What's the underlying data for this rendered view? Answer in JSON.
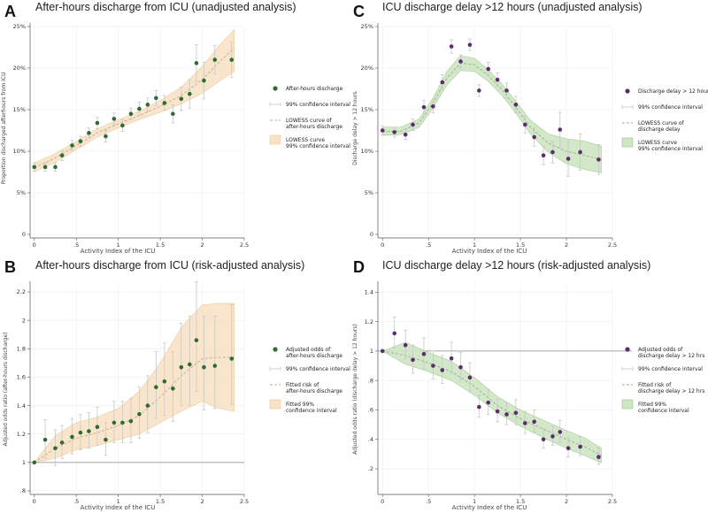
{
  "chart_data": [
    {
      "panel": "A",
      "type": "scatter",
      "title": "After-hours discharge from ICU (unadjusted analysis)",
      "xlabel": "Activity Index of the ICU",
      "ylabel": "Proportion discharged afterhours from ICU",
      "xlim": [
        -0.05,
        2.5
      ],
      "ylim": [
        0,
        25
      ],
      "xticks": [
        0,
        0.5,
        1,
        1.5,
        2,
        2.5
      ],
      "xtick_labels": [
        "0",
        ".5",
        "1",
        "1.5",
        "2",
        "2.5"
      ],
      "yticks": [
        0,
        5,
        10,
        15,
        20,
        25
      ],
      "ytick_labels": [
        "0",
        "5%",
        "10%",
        "15%",
        "20%",
        "25%"
      ],
      "ref_line": null,
      "colors": {
        "point": "#2e6b35",
        "band_fill": "#f9e3c7",
        "band_stroke": "#f0c48f",
        "ci": "#c8c8c8",
        "curve": "#c4a98d"
      },
      "x": [
        0,
        0.13,
        0.25,
        0.33,
        0.45,
        0.55,
        0.65,
        0.75,
        0.85,
        0.95,
        1.05,
        1.15,
        1.25,
        1.35,
        1.45,
        1.55,
        1.65,
        1.75,
        1.85,
        1.93,
        2.02,
        2.15,
        2.35
      ],
      "y": [
        8.1,
        8.1,
        8.1,
        9.5,
        10.7,
        11.2,
        12.2,
        13.4,
        11.8,
        13.9,
        13.1,
        14.5,
        15.1,
        15.6,
        16.4,
        15.8,
        14.5,
        16.3,
        16.9,
        20.6,
        18.5,
        21.0,
        21.0
      ],
      "ci_low": [
        7.6,
        7.6,
        7.6,
        8.9,
        10.1,
        10.6,
        11.6,
        12.7,
        11.1,
        13.2,
        12.4,
        13.8,
        14.3,
        14.8,
        15.5,
        14.9,
        13.4,
        14.9,
        15.2,
        18.4,
        16.3,
        19.3,
        18.9
      ],
      "ci_high": [
        8.6,
        8.6,
        8.6,
        10.1,
        11.3,
        11.8,
        12.8,
        14.1,
        12.5,
        14.6,
        13.8,
        15.2,
        15.9,
        16.4,
        17.3,
        16.7,
        15.6,
        17.7,
        18.6,
        22.8,
        20.7,
        22.7,
        23.1
      ],
      "fit_x": [
        0,
        0.25,
        0.5,
        0.75,
        1.0,
        1.25,
        1.5,
        1.75,
        2.0,
        2.2,
        2.38
      ],
      "fit_y": [
        8.0,
        9.2,
        10.7,
        12.2,
        13.3,
        14.3,
        15.4,
        16.7,
        18.6,
        20.7,
        22.4
      ],
      "band_low": [
        7.5,
        8.7,
        10.2,
        11.7,
        12.8,
        13.8,
        14.7,
        15.7,
        17.0,
        18.4,
        19.6
      ],
      "band_high": [
        8.6,
        9.7,
        11.2,
        12.7,
        13.8,
        14.8,
        16.1,
        17.7,
        20.2,
        22.7,
        24.6
      ],
      "legend": {
        "position": "right",
        "items": [
          {
            "kind": "dot",
            "label": "After-hours discharge"
          },
          {
            "kind": "ci",
            "label": "99% confidence interval"
          },
          {
            "kind": "curve",
            "label": "LOWESS curve of",
            "label2": "after-hours discharge"
          },
          {
            "kind": "band",
            "label": "LOWESS curve",
            "label2": "99% confidence interval"
          }
        ]
      }
    },
    {
      "panel": "B",
      "type": "scatter",
      "title": "After-hours discharge from ICU (risk-adjusted analysis)",
      "xlabel": "Activity Index of the ICU",
      "ylabel": "Adjusted odds ratio (after-hours discharge)",
      "xlim": [
        -0.05,
        2.5
      ],
      "ylim": [
        0.8,
        2.25
      ],
      "xticks": [
        0,
        0.5,
        1,
        1.5,
        2,
        2.5
      ],
      "xtick_labels": [
        "0",
        ".5",
        "1",
        "1.5",
        "2",
        "2.5"
      ],
      "yticks": [
        0.8,
        1,
        1.2,
        1.4,
        1.6,
        1.8,
        2,
        2.2
      ],
      "ytick_labels": [
        ".8",
        "1",
        "1.2",
        "1.4",
        "1.6",
        "1.8",
        "2",
        "2.2"
      ],
      "ref_line": 1,
      "colors": {
        "point": "#2e6b35",
        "band_fill": "#f9e3c7",
        "band_stroke": "#f0c48f",
        "ci": "#c8c8c8",
        "curve": "#c4a98d"
      },
      "x": [
        0,
        0.13,
        0.25,
        0.33,
        0.45,
        0.55,
        0.65,
        0.75,
        0.85,
        0.95,
        1.05,
        1.15,
        1.25,
        1.35,
        1.45,
        1.55,
        1.65,
        1.75,
        1.85,
        1.93,
        2.02,
        2.15,
        2.35
      ],
      "y": [
        1.0,
        1.16,
        1.1,
        1.14,
        1.18,
        1.21,
        1.22,
        1.25,
        1.16,
        1.28,
        1.28,
        1.29,
        1.34,
        1.4,
        1.53,
        1.57,
        1.52,
        1.67,
        1.69,
        1.86,
        1.67,
        1.68,
        1.73
      ],
      "ci_low": [
        1.0,
        1.03,
        0.98,
        1.03,
        1.06,
        1.09,
        1.1,
        1.12,
        1.05,
        1.14,
        1.14,
        1.14,
        1.17,
        1.21,
        1.31,
        1.33,
        1.29,
        1.4,
        1.4,
        1.5,
        1.37,
        1.38,
        1.41
      ],
      "ci_high": [
        1.0,
        1.3,
        1.23,
        1.26,
        1.31,
        1.34,
        1.35,
        1.39,
        1.28,
        1.43,
        1.43,
        1.45,
        1.53,
        1.61,
        1.78,
        1.84,
        1.78,
        1.98,
        2.03,
        2.27,
        2.03,
        2.03,
        2.11
      ],
      "fit_x": [
        0,
        0.25,
        0.5,
        0.75,
        1.0,
        1.25,
        1.5,
        1.75,
        2.0,
        2.2,
        2.38
      ],
      "fit_y": [
        1.0,
        1.1,
        1.17,
        1.21,
        1.26,
        1.33,
        1.46,
        1.61,
        1.73,
        1.74,
        1.74
      ],
      "band_low": [
        1.0,
        1.03,
        1.09,
        1.12,
        1.16,
        1.2,
        1.28,
        1.36,
        1.43,
        1.38,
        1.36
      ],
      "band_high": [
        1.0,
        1.19,
        1.28,
        1.32,
        1.38,
        1.5,
        1.7,
        1.95,
        2.11,
        2.12,
        2.12
      ],
      "legend": {
        "position": "right",
        "items": [
          {
            "kind": "dot",
            "label": "Adjusted odds of",
            "label2": "after-hours discharge"
          },
          {
            "kind": "ci",
            "label": "99% confidence interval"
          },
          {
            "kind": "curve",
            "label": "Fitted risk of",
            "label2": "after-hours discharge"
          },
          {
            "kind": "band",
            "label": "Fitted 99%",
            "label2": "confidence interval"
          }
        ]
      }
    },
    {
      "panel": "C",
      "type": "scatter",
      "title": "ICU discharge delay >12 hours (unadjusted analysis)",
      "xlabel": "Activity Index of the ICU",
      "ylabel": "Discharge delay > 12 hours",
      "xlim": [
        -0.05,
        2.5
      ],
      "ylim": [
        0,
        25
      ],
      "xticks": [
        0,
        0.5,
        1,
        1.5,
        2,
        2.5
      ],
      "xtick_labels": [
        "0",
        ".5",
        "1",
        "1.5",
        "2",
        "2.5"
      ],
      "yticks": [
        0,
        5,
        10,
        15,
        20,
        25
      ],
      "ytick_labels": [
        "0",
        "5%",
        "10%",
        "15%",
        "20%",
        "25%"
      ],
      "ref_line": null,
      "colors": {
        "point": "#5a2d6e",
        "band_fill": "#cfe5c4",
        "band_stroke": "#9cc98a",
        "ci": "#c8c8c8",
        "curve": "#93b389"
      },
      "x": [
        0,
        0.13,
        0.25,
        0.33,
        0.45,
        0.55,
        0.65,
        0.75,
        0.85,
        0.95,
        1.05,
        1.15,
        1.25,
        1.35,
        1.45,
        1.55,
        1.65,
        1.75,
        1.85,
        1.93,
        2.02,
        2.15,
        2.35
      ],
      "y": [
        12.5,
        12.3,
        12.0,
        13.2,
        15.3,
        15.4,
        18.3,
        22.6,
        20.8,
        22.8,
        17.3,
        19.9,
        18.6,
        17.3,
        15.6,
        13.2,
        11.7,
        9.5,
        9.9,
        12.6,
        9.1,
        9.9,
        9.0
      ],
      "ci_low": [
        12.0,
        11.7,
        11.4,
        12.5,
        14.5,
        14.6,
        17.4,
        21.8,
        20.0,
        22.1,
        16.6,
        19.1,
        17.8,
        16.4,
        14.6,
        12.2,
        10.6,
        8.4,
        8.6,
        10.5,
        7.0,
        7.7,
        7.2
      ],
      "ci_high": [
        13.0,
        12.9,
        12.6,
        13.9,
        16.1,
        16.2,
        19.2,
        23.4,
        21.6,
        23.5,
        18.0,
        20.7,
        19.4,
        18.2,
        16.6,
        14.2,
        12.8,
        10.6,
        11.2,
        14.7,
        11.2,
        12.1,
        10.8
      ],
      "fit_x": [
        0,
        0.2,
        0.4,
        0.55,
        0.7,
        0.85,
        1.0,
        1.15,
        1.3,
        1.45,
        1.6,
        1.8,
        2.0,
        2.2,
        2.38
      ],
      "fit_y": [
        12.4,
        12.4,
        13.4,
        15.8,
        18.8,
        20.6,
        20.4,
        19.1,
        17.4,
        15.3,
        13.0,
        11.0,
        10.0,
        9.5,
        9.0
      ],
      "band_low": [
        11.9,
        12.0,
        12.9,
        15.2,
        18.0,
        19.7,
        19.6,
        18.4,
        16.7,
        14.6,
        12.2,
        9.9,
        8.5,
        7.8,
        7.4
      ],
      "band_high": [
        12.9,
        12.9,
        13.9,
        16.4,
        19.6,
        21.5,
        21.2,
        19.8,
        18.1,
        16.0,
        13.8,
        12.1,
        11.5,
        11.2,
        10.6
      ],
      "legend": {
        "position": "right",
        "items": [
          {
            "kind": "dot",
            "label": "Discharge delay > 12 hours"
          },
          {
            "kind": "ci",
            "label": "99% confidence interval"
          },
          {
            "kind": "curve",
            "label": "LOWESS curve of",
            "label2": "discharge delay"
          },
          {
            "kind": "band",
            "label": "LOWESS curve",
            "label2": "99% confidence interval"
          }
        ]
      }
    },
    {
      "panel": "D",
      "type": "scatter",
      "title": "ICU discharge delay >12 hours (risk-adjusted analysis)",
      "xlabel": "Activity Index of the ICU",
      "ylabel": "Adjusted odds ratio (discharge delay > 12 hours)",
      "xlim": [
        -0.05,
        2.5
      ],
      "ylim": [
        0.05,
        1.45
      ],
      "xticks": [
        0,
        0.5,
        1,
        1.5,
        2,
        2.5
      ],
      "xtick_labels": [
        "0",
        ".5",
        "1",
        "1.5",
        "2",
        "2.5"
      ],
      "yticks": [
        0.2,
        0.4,
        0.6,
        0.8,
        1,
        1.2,
        1.4
      ],
      "ytick_labels": [
        ".2",
        ".4",
        ".6",
        ".8",
        "1",
        "1.2",
        "1.4"
      ],
      "ref_line": 1,
      "colors": {
        "point": "#5a2d6e",
        "band_fill": "#cfe5c4",
        "band_stroke": "#9cc98a",
        "ci": "#c8c8c8",
        "curve": "#93b389"
      },
      "x": [
        0,
        0.13,
        0.25,
        0.33,
        0.45,
        0.55,
        0.65,
        0.75,
        0.85,
        0.95,
        1.05,
        1.15,
        1.25,
        1.35,
        1.45,
        1.55,
        1.65,
        1.75,
        1.85,
        1.93,
        2.02,
        2.15,
        2.35
      ],
      "y": [
        1.0,
        1.12,
        1.04,
        0.94,
        0.98,
        0.9,
        0.87,
        0.95,
        0.89,
        0.82,
        0.62,
        0.65,
        0.59,
        0.57,
        0.58,
        0.51,
        0.52,
        0.4,
        0.42,
        0.45,
        0.34,
        0.35,
        0.28
      ],
      "ci_low": [
        1.0,
        1.02,
        0.95,
        0.85,
        0.88,
        0.81,
        0.78,
        0.85,
        0.8,
        0.73,
        0.55,
        0.57,
        0.52,
        0.5,
        0.5,
        0.44,
        0.45,
        0.34,
        0.36,
        0.38,
        0.28,
        0.29,
        0.23
      ],
      "ci_high": [
        1.0,
        1.23,
        1.14,
        1.04,
        1.09,
        1.0,
        0.97,
        1.06,
        0.99,
        0.92,
        0.7,
        0.74,
        0.67,
        0.65,
        0.67,
        0.59,
        0.6,
        0.47,
        0.49,
        0.53,
        0.41,
        0.42,
        0.34
      ],
      "fit_x": [
        0,
        0.25,
        0.5,
        0.75,
        1.0,
        1.25,
        1.5,
        1.75,
        2.0,
        2.2,
        2.38
      ],
      "fit_y": [
        1.0,
        0.97,
        0.92,
        0.86,
        0.76,
        0.63,
        0.54,
        0.47,
        0.4,
        0.35,
        0.29
      ],
      "band_low": [
        1.0,
        0.91,
        0.86,
        0.8,
        0.7,
        0.58,
        0.49,
        0.41,
        0.34,
        0.29,
        0.24
      ],
      "band_high": [
        1.0,
        1.06,
        0.99,
        0.93,
        0.82,
        0.69,
        0.6,
        0.53,
        0.46,
        0.41,
        0.34
      ],
      "legend": {
        "position": "right",
        "items": [
          {
            "kind": "dot",
            "label": "Adjusted odds of",
            "label2": "discharge delay > 12 hrs"
          },
          {
            "kind": "ci",
            "label": "99% confidence interval"
          },
          {
            "kind": "curve",
            "label": "Fitted risk of",
            "label2": "discharge delay > 12 hrs"
          },
          {
            "kind": "band",
            "label": "Fitted 99%",
            "label2": "confidence interval"
          }
        ]
      }
    }
  ]
}
